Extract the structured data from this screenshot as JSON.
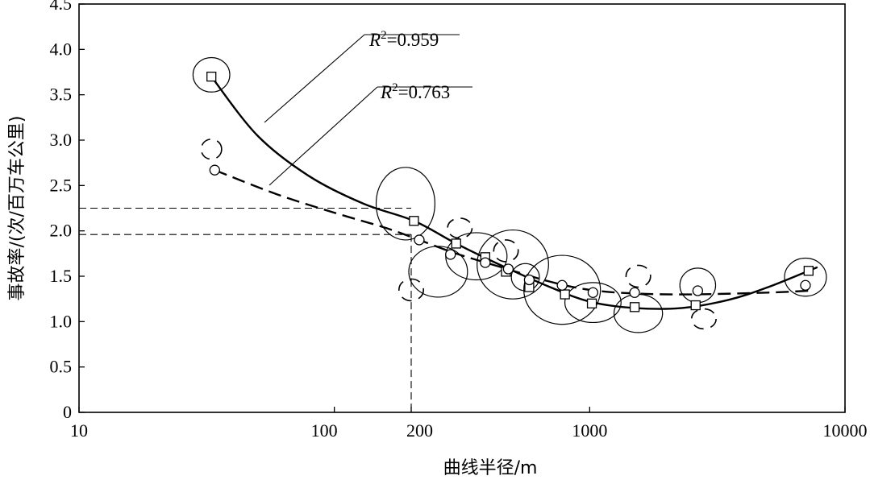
{
  "chart_data": {
    "type": "scatter",
    "x_scale": "log",
    "xlim": [
      10,
      10000
    ],
    "ylim": [
      0,
      4.5
    ],
    "xlabel": "曲线半径/m",
    "ylabel": "事故率/(次/百万车公里)",
    "x_ticks": [
      {
        "value": 10,
        "label": "10"
      },
      {
        "value": 100,
        "label": "100"
      },
      {
        "value": 200,
        "label": "200"
      },
      {
        "value": 1000,
        "label": "1000"
      },
      {
        "value": 10000,
        "label": "10000"
      }
    ],
    "y_ticks": [
      {
        "value": 0,
        "label": "0"
      },
      {
        "value": 0.5,
        "label": "0.5"
      },
      {
        "value": 1.0,
        "label": "1.0"
      },
      {
        "value": 1.5,
        "label": "1.5"
      },
      {
        "value": 2.0,
        "label": "2.0"
      },
      {
        "value": 2.5,
        "label": "2.5"
      },
      {
        "value": 3.0,
        "label": "3.0"
      },
      {
        "value": 3.5,
        "label": "3.5"
      },
      {
        "value": 4.0,
        "label": "4.0"
      },
      {
        "value": 4.5,
        "label": "4.5"
      }
    ],
    "series": [
      {
        "marker": "square",
        "line_style": "solid",
        "points": [
          {
            "x": 33,
            "y": 3.7
          },
          {
            "x": 205,
            "y": 2.11
          },
          {
            "x": 300,
            "y": 1.86
          },
          {
            "x": 390,
            "y": 1.71
          },
          {
            "x": 470,
            "y": 1.55
          },
          {
            "x": 580,
            "y": 1.38
          },
          {
            "x": 800,
            "y": 1.3
          },
          {
            "x": 1020,
            "y": 1.2
          },
          {
            "x": 1500,
            "y": 1.16
          },
          {
            "x": 2600,
            "y": 1.18
          },
          {
            "x": 7200,
            "y": 1.56
          }
        ],
        "fit_curve": [
          {
            "x": 33,
            "y": 3.7
          },
          {
            "x": 50,
            "y": 3.05
          },
          {
            "x": 80,
            "y": 2.6
          },
          {
            "x": 130,
            "y": 2.3
          },
          {
            "x": 205,
            "y": 2.11
          },
          {
            "x": 300,
            "y": 1.86
          },
          {
            "x": 450,
            "y": 1.62
          },
          {
            "x": 700,
            "y": 1.38
          },
          {
            "x": 1000,
            "y": 1.22
          },
          {
            "x": 1500,
            "y": 1.15
          },
          {
            "x": 2300,
            "y": 1.15
          },
          {
            "x": 3500,
            "y": 1.24
          },
          {
            "x": 5000,
            "y": 1.38
          },
          {
            "x": 7800,
            "y": 1.6
          }
        ],
        "fit_label": "R²=0.959",
        "label_R": "R",
        "label_rest": "=0.959"
      },
      {
        "marker": "circle",
        "line_style": "dashed",
        "points": [
          {
            "x": 34,
            "y": 2.67
          },
          {
            "x": 215,
            "y": 1.9
          },
          {
            "x": 285,
            "y": 1.74
          },
          {
            "x": 390,
            "y": 1.65
          },
          {
            "x": 480,
            "y": 1.58
          },
          {
            "x": 580,
            "y": 1.46
          },
          {
            "x": 780,
            "y": 1.4
          },
          {
            "x": 1030,
            "y": 1.32
          },
          {
            "x": 1500,
            "y": 1.32
          },
          {
            "x": 2650,
            "y": 1.34
          },
          {
            "x": 7000,
            "y": 1.4
          }
        ],
        "fit_curve": [
          {
            "x": 34,
            "y": 2.67
          },
          {
            "x": 60,
            "y": 2.4
          },
          {
            "x": 100,
            "y": 2.2
          },
          {
            "x": 160,
            "y": 2.03
          },
          {
            "x": 215,
            "y": 1.9
          },
          {
            "x": 300,
            "y": 1.75
          },
          {
            "x": 450,
            "y": 1.6
          },
          {
            "x": 700,
            "y": 1.44
          },
          {
            "x": 1000,
            "y": 1.35
          },
          {
            "x": 1500,
            "y": 1.31
          },
          {
            "x": 2500,
            "y": 1.3
          },
          {
            "x": 5000,
            "y": 1.32
          },
          {
            "x": 7200,
            "y": 1.34
          }
        ],
        "fit_label": "R²=0.763",
        "label_R": "R",
        "label_rest": "=0.763"
      }
    ],
    "reference_lines": [
      {
        "y": 2.25,
        "x_end": 200
      },
      {
        "y": 1.96,
        "x_end": 200
      },
      {
        "x": 200,
        "y_end": 1.96
      }
    ],
    "solid_ellipses": [
      {
        "x": 33,
        "y": 3.72,
        "rx": 0.072,
        "ry": 0.19
      },
      {
        "x": 190,
        "y": 2.3,
        "rx": 0.115,
        "ry": 0.4
      },
      {
        "x": 255,
        "y": 1.55,
        "rx": 0.115,
        "ry": 0.28
      },
      {
        "x": 360,
        "y": 1.72,
        "rx": 0.12,
        "ry": 0.26
      },
      {
        "x": 500,
        "y": 1.63,
        "rx": 0.14,
        "ry": 0.38
      },
      {
        "x": 560,
        "y": 1.49,
        "rx": 0.055,
        "ry": 0.15
      },
      {
        "x": 780,
        "y": 1.35,
        "rx": 0.15,
        "ry": 0.38
      },
      {
        "x": 1030,
        "y": 1.21,
        "rx": 0.11,
        "ry": 0.22
      },
      {
        "x": 1550,
        "y": 1.09,
        "rx": 0.095,
        "ry": 0.21
      },
      {
        "x": 2650,
        "y": 1.4,
        "rx": 0.07,
        "ry": 0.19
      },
      {
        "x": 7000,
        "y": 1.49,
        "rx": 0.082,
        "ry": 0.21
      }
    ],
    "dashed_ellipses": [
      {
        "x": 33,
        "y": 2.9,
        "rx": 0.04,
        "ry": 0.11
      },
      {
        "x": 200,
        "y": 1.35,
        "rx": 0.048,
        "ry": 0.12
      },
      {
        "x": 310,
        "y": 2.03,
        "rx": 0.048,
        "ry": 0.11
      },
      {
        "x": 470,
        "y": 1.78,
        "rx": 0.048,
        "ry": 0.12
      },
      {
        "x": 1550,
        "y": 1.5,
        "rx": 0.048,
        "ry": 0.12
      },
      {
        "x": 2800,
        "y": 1.03,
        "rx": 0.048,
        "ry": 0.11
      }
    ]
  }
}
